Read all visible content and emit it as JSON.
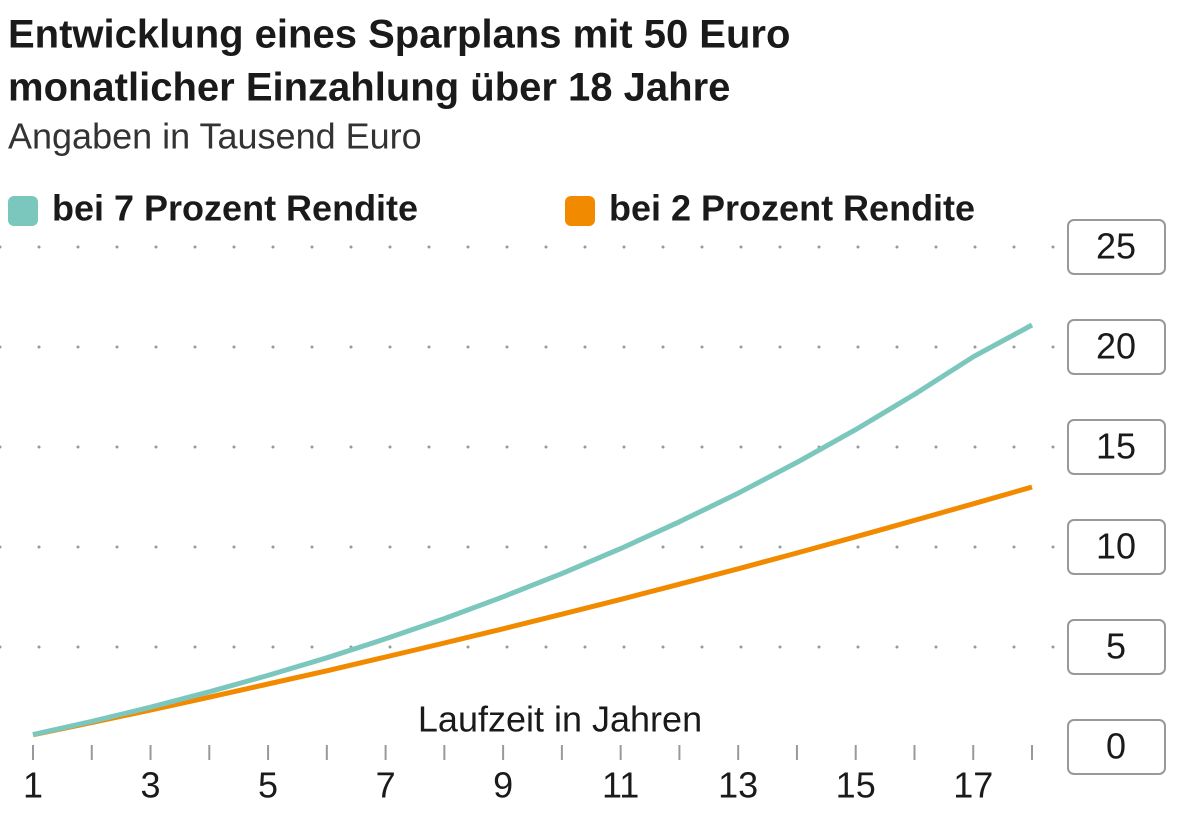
{
  "chart_data": {
    "type": "line",
    "title": [
      "Entwicklung eines Sparplans mit 50 Euro",
      "monatlicher Einzahlung über 18 Jahre"
    ],
    "subtitle": "Angaben in Tausend Euro",
    "x_label": "Laufzeit in Jahren",
    "x": [
      1,
      2,
      3,
      4,
      5,
      6,
      7,
      8,
      9,
      10,
      11,
      12,
      13,
      14,
      15,
      16,
      17,
      18
    ],
    "series": [
      {
        "name": "bei 7 Prozent Rendite",
        "color": "#7cc7bd",
        "values": [
          0.62,
          1.28,
          1.99,
          2.76,
          3.58,
          4.46,
          5.41,
          6.42,
          7.51,
          8.67,
          9.92,
          11.26,
          12.69,
          14.23,
          15.87,
          17.63,
          19.51,
          21.1
        ]
      },
      {
        "name": "bei 2 Prozent Rendite",
        "color": "#f28a00",
        "values": [
          0.61,
          1.22,
          1.85,
          2.49,
          3.15,
          3.81,
          4.5,
          5.2,
          5.91,
          6.64,
          7.38,
          8.14,
          8.91,
          9.7,
          10.51,
          11.33,
          12.16,
          13.0
        ]
      }
    ],
    "xlim": [
      1,
      18
    ],
    "xticks": [
      1,
      3,
      5,
      7,
      9,
      11,
      13,
      15,
      17
    ],
    "ylim": [
      0,
      25
    ],
    "yticks": [
      0,
      5,
      10,
      15,
      20,
      25
    ],
    "grid": true
  }
}
